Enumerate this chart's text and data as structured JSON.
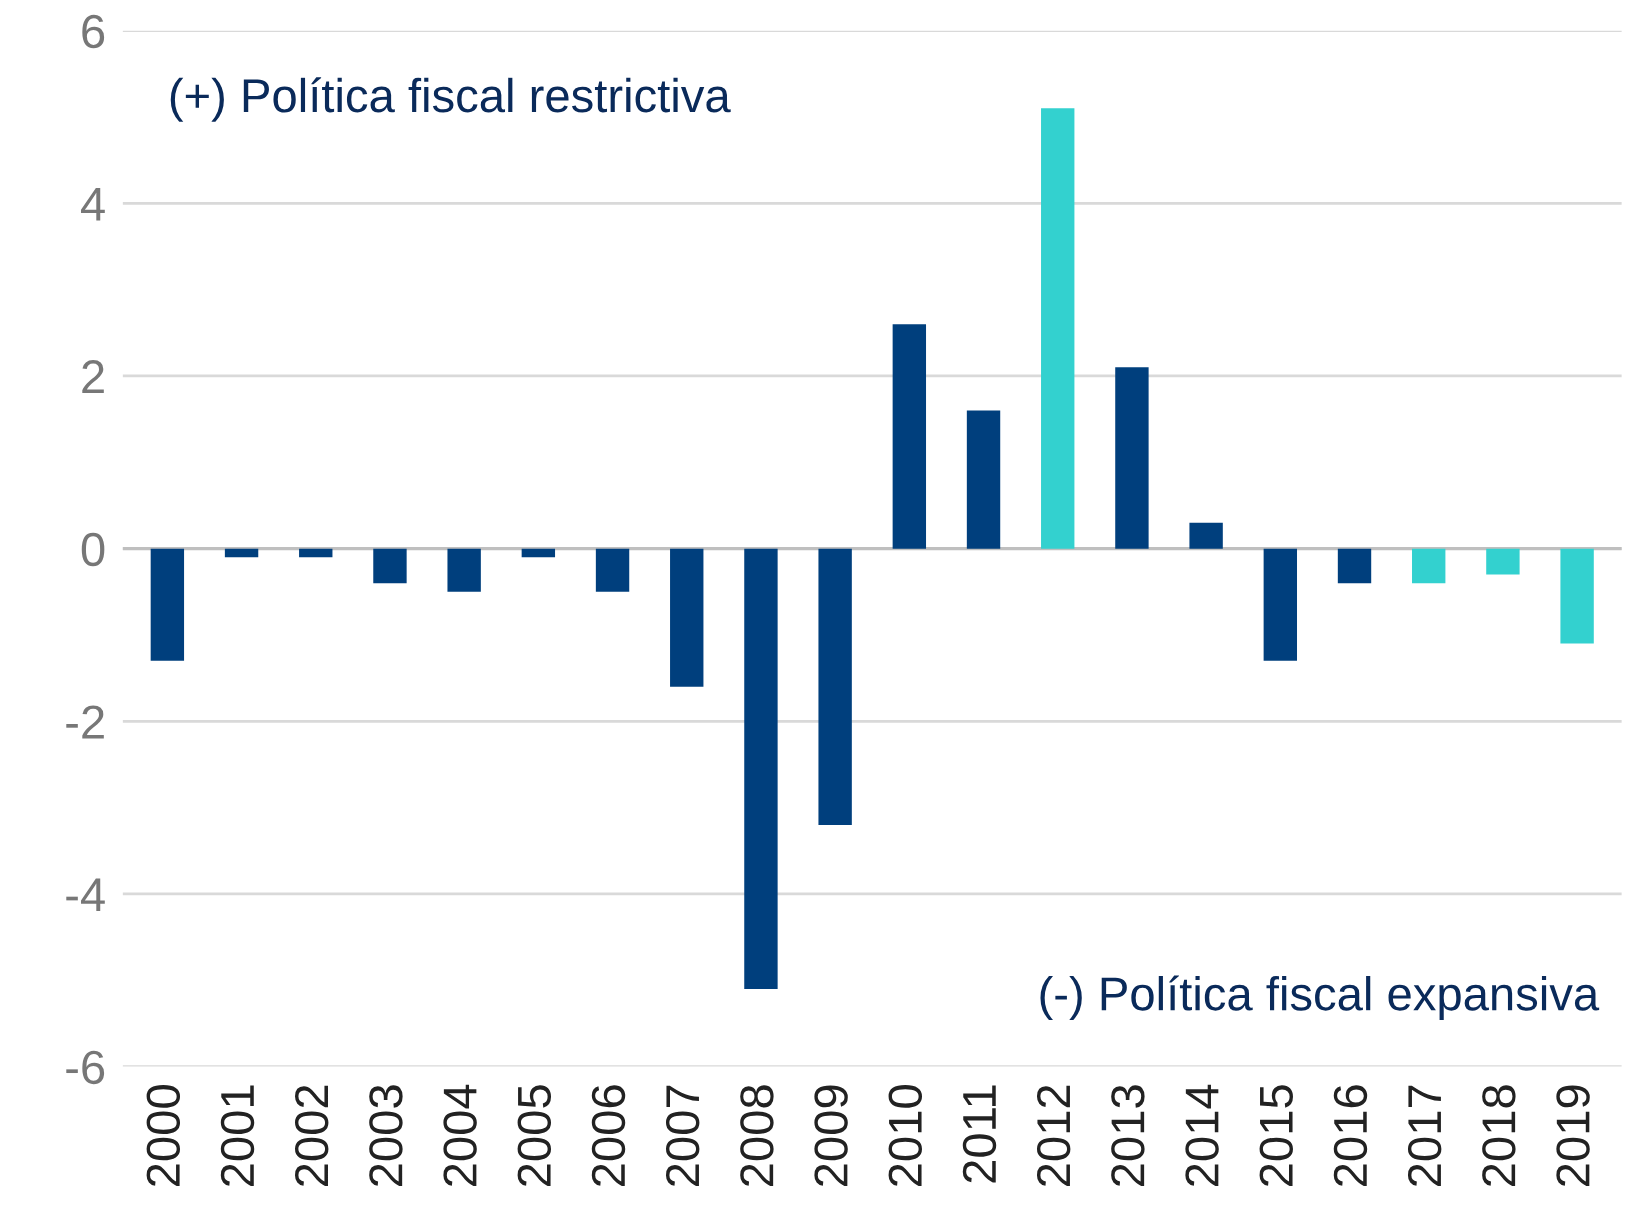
{
  "chart_data": {
    "type": "bar",
    "categories": [
      "2000",
      "2001",
      "2002",
      "2003",
      "2004",
      "2005",
      "2006",
      "2007",
      "2008",
      "2009",
      "2010",
      "2011",
      "2012",
      "2013",
      "2014",
      "2015",
      "2016",
      "2017",
      "2018",
      "2019"
    ],
    "values": [
      -1.3,
      -0.1,
      -0.1,
      -0.4,
      -0.5,
      -0.1,
      -0.5,
      -1.6,
      -5.1,
      -3.2,
      2.6,
      1.6,
      5.1,
      2.1,
      0.3,
      -1.3,
      -0.4,
      -0.4,
      -0.3,
      -1.1
    ],
    "colors": [
      "#003f7d",
      "#003f7d",
      "#003f7d",
      "#003f7d",
      "#003f7d",
      "#003f7d",
      "#003f7d",
      "#003f7d",
      "#003f7d",
      "#003f7d",
      "#003f7d",
      "#003f7d",
      "#33d1cf",
      "#003f7d",
      "#003f7d",
      "#003f7d",
      "#003f7d",
      "#33d1cf",
      "#33d1cf",
      "#33d1cf"
    ],
    "ylim": [
      -6,
      6
    ],
    "yticks": [
      -6,
      -4,
      -2,
      0,
      2,
      4,
      6
    ],
    "grid": "y",
    "annotations": [
      "(+) Política fiscal restrictiva",
      "(-) Política fiscal expansiva"
    ]
  }
}
